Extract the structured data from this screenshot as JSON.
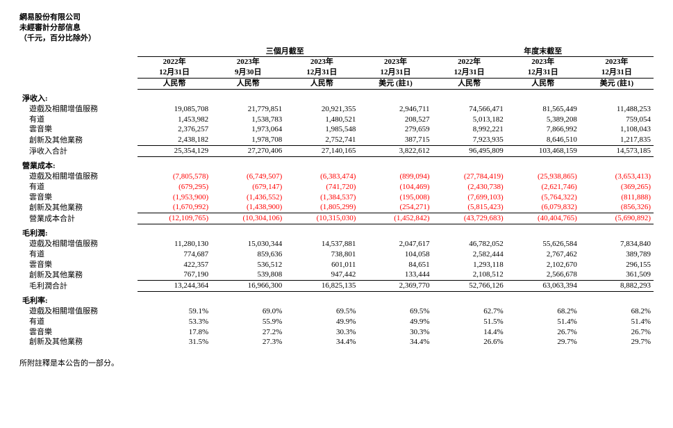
{
  "header": {
    "company": "網易股份有限公司",
    "title": "未經審計分部信息",
    "unit": "（千元，百分比除外）"
  },
  "spanHeaders": {
    "q": "三個月截至",
    "y": "年度末截至"
  },
  "periods": [
    {
      "date": "2022年",
      "mmdd": "12月31日",
      "curr": "人民幣"
    },
    {
      "date": "2023年",
      "mmdd": "9月30日",
      "curr": "人民幣"
    },
    {
      "date": "2023年",
      "mmdd": "12月31日",
      "curr": "人民幣"
    },
    {
      "date": "2023年",
      "mmdd": "12月31日",
      "curr": "美元 (註1)"
    },
    {
      "date": "2022年",
      "mmdd": "12月31日",
      "curr": "人民幣"
    },
    {
      "date": "2023年",
      "mmdd": "12月31日",
      "curr": "人民幣"
    },
    {
      "date": "2023年",
      "mmdd": "12月31日",
      "curr": "美元 (註1)"
    }
  ],
  "sections": [
    {
      "title": "淨收入:",
      "rows": [
        {
          "label": "遊戲及相關增值服務",
          "v": [
            19085708,
            21779851,
            20921355,
            2946711,
            74566471,
            81565449,
            11488253
          ]
        },
        {
          "label": "有道",
          "v": [
            1453982,
            1538783,
            1480521,
            208527,
            5013182,
            5389208,
            759054
          ]
        },
        {
          "label": "雲音樂",
          "v": [
            2376257,
            1973064,
            1985548,
            279659,
            8992221,
            7866992,
            1108043
          ]
        },
        {
          "label": "創新及其他業務",
          "v": [
            2438182,
            1978708,
            2752741,
            387715,
            7923935,
            8646510,
            1217835
          ]
        }
      ],
      "total": {
        "label": "淨收入合計",
        "v": [
          25354129,
          27270406,
          27140165,
          3822612,
          96495809,
          103468159,
          14573185
        ]
      }
    },
    {
      "title": "營業成本:",
      "rows": [
        {
          "label": "遊戲及相關增值服務",
          "v": [
            -7805578,
            -6749507,
            -6383474,
            -899094,
            -27784419,
            -25938865,
            -3653413
          ]
        },
        {
          "label": "有道",
          "v": [
            -679295,
            -679147,
            -741720,
            -104469,
            -2430738,
            -2621746,
            -369265
          ]
        },
        {
          "label": "雲音樂",
          "v": [
            -1953900,
            -1436552,
            -1384537,
            -195008,
            -7699103,
            -5764322,
            -811888
          ]
        },
        {
          "label": "創新及其他業務",
          "v": [
            -1670992,
            -1438900,
            -1805299,
            -254271,
            -5815423,
            -6079832,
            -856326
          ]
        }
      ],
      "total": {
        "label": "營業成本合計",
        "v": [
          -12109765,
          -10304106,
          -10315030,
          -1452842,
          -43729683,
          -40404765,
          -5690892
        ]
      }
    },
    {
      "title": "毛利潤:",
      "rows": [
        {
          "label": "遊戲及相關增值服務",
          "v": [
            11280130,
            15030344,
            14537881,
            2047617,
            46782052,
            55626584,
            7834840
          ]
        },
        {
          "label": "有道",
          "v": [
            774687,
            859636,
            738801,
            104058,
            2582444,
            2767462,
            389789
          ]
        },
        {
          "label": "雲音樂",
          "v": [
            422357,
            536512,
            601011,
            84651,
            1293118,
            2102670,
            296155
          ]
        },
        {
          "label": "創新及其他業務",
          "v": [
            767190,
            539808,
            947442,
            133444,
            2108512,
            2566678,
            361509
          ]
        }
      ],
      "total": {
        "label": "毛利潤合計",
        "v": [
          13244364,
          16966300,
          16825135,
          2369770,
          52766126,
          63063394,
          8882293
        ]
      }
    },
    {
      "title": "毛利率:",
      "rows": [
        {
          "label": "遊戲及相關增值服務",
          "p": [
            "59.1%",
            "69.0%",
            "69.5%",
            "69.5%",
            "62.7%",
            "68.2%",
            "68.2%"
          ]
        },
        {
          "label": "有道",
          "p": [
            "53.3%",
            "55.9%",
            "49.9%",
            "49.9%",
            "51.5%",
            "51.4%",
            "51.4%"
          ]
        },
        {
          "label": "雲音樂",
          "p": [
            "17.8%",
            "27.2%",
            "30.3%",
            "30.3%",
            "14.4%",
            "26.7%",
            "26.7%"
          ]
        },
        {
          "label": "創新及其他業務",
          "p": [
            "31.5%",
            "27.3%",
            "34.4%",
            "34.4%",
            "26.6%",
            "29.7%",
            "29.7%"
          ]
        }
      ]
    }
  ],
  "footnote": "所附註釋是本公告的一部分。"
}
